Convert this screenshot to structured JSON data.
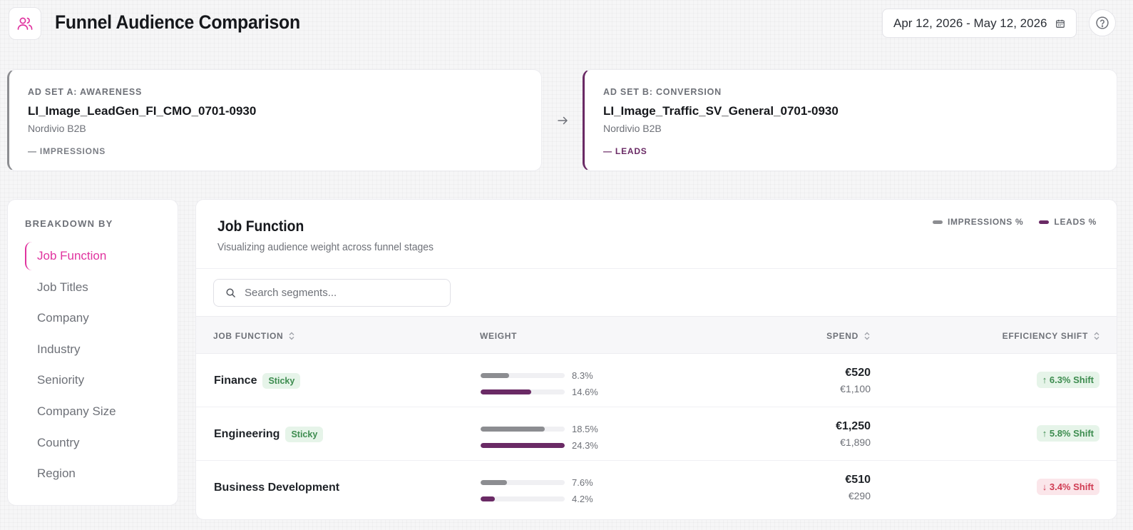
{
  "header": {
    "title": "Funnel Audience Comparison",
    "app_icon": "users-icon",
    "date_range": "Apr 12, 2026 - May 12, 2026",
    "calendar_icon": "calendar-icon",
    "help_icon": "help-circle-icon"
  },
  "ad_sets": {
    "a": {
      "label": "AD SET A: AWARENESS",
      "name": "LI_Image_LeadGen_FI_CMO_0701-0930",
      "org": "Nordivio B2B",
      "metric": "— IMPRESSIONS"
    },
    "b": {
      "label": "AD SET B: CONVERSION",
      "name": "LI_Image_Traffic_SV_General_0701-0930",
      "org": "Nordivio B2B",
      "metric": "— LEADS"
    }
  },
  "sidebar": {
    "heading": "BREAKDOWN BY",
    "items": [
      {
        "label": "Job Function",
        "active": true
      },
      {
        "label": "Job Titles",
        "active": false
      },
      {
        "label": "Company",
        "active": false
      },
      {
        "label": "Industry",
        "active": false
      },
      {
        "label": "Seniority",
        "active": false
      },
      {
        "label": "Company Size",
        "active": false
      },
      {
        "label": "Country",
        "active": false
      },
      {
        "label": "Region",
        "active": false
      }
    ]
  },
  "panel": {
    "title": "Job Function",
    "subtitle": "Visualizing audience weight across funnel stages",
    "legend": [
      {
        "label": "IMPRESSIONS %",
        "color": "#8c8d91"
      },
      {
        "label": "LEADS %",
        "color": "#6a2a65"
      }
    ],
    "search_placeholder": "Search segments...",
    "search_value": ""
  },
  "table": {
    "headers": {
      "job_function": "JOB FUNCTION",
      "weight": "WEIGHT",
      "spend": "SPEND",
      "efficiency": "EFFICIENCY SHIFT"
    },
    "rows": [
      {
        "name": "Finance",
        "badge": "Sticky",
        "impressions_pct": 8.3,
        "impressions_label": "8.3%",
        "leads_pct": 14.6,
        "leads_label": "14.6%",
        "spend_a": "€520",
        "spend_b": "€1,100",
        "shift": "↑ 6.3% Shift",
        "shift_direction": "up"
      },
      {
        "name": "Engineering",
        "badge": "Sticky",
        "impressions_pct": 18.5,
        "impressions_label": "18.5%",
        "leads_pct": 24.3,
        "leads_label": "24.3%",
        "spend_a": "€1,250",
        "spend_b": "€1,890",
        "shift": "↑ 5.8% Shift",
        "shift_direction": "up"
      },
      {
        "name": "Business Development",
        "badge": "",
        "impressions_pct": 7.6,
        "impressions_label": "7.6%",
        "leads_pct": 4.2,
        "leads_label": "4.2%",
        "spend_a": "€510",
        "spend_b": "€290",
        "shift": "↓ 3.4% Shift",
        "shift_direction": "down"
      }
    ]
  },
  "colors": {
    "accent": "#e0339f",
    "impressions": "#8c8d91",
    "leads": "#6a2a65",
    "positive": "#3d8c4f",
    "negative": "#d03c53"
  }
}
